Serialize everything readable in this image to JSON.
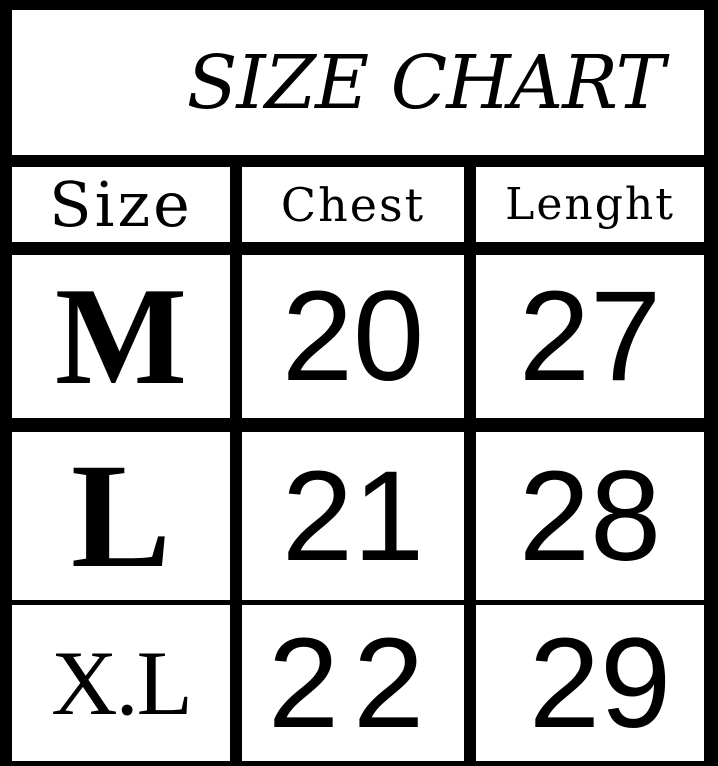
{
  "title": "SIZE CHART",
  "headers": [
    "Size",
    "Chest",
    "Lenght"
  ],
  "rows": [
    {
      "size": "M",
      "chest": "20",
      "length": "27"
    },
    {
      "size": "L",
      "chest": "21",
      "length": "28"
    },
    {
      "size": "X.L",
      "chest": "22",
      "length": "29"
    }
  ]
}
